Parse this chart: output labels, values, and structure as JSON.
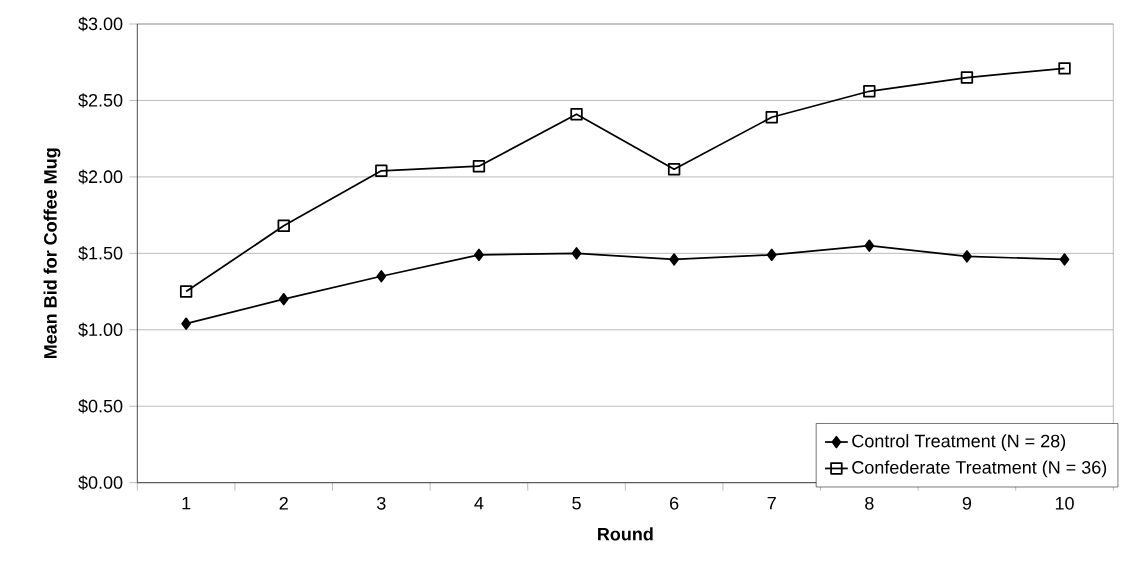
{
  "chart_data": {
    "type": "line",
    "xlabel": "Round",
    "ylabel": "Mean Bid for Coffee Mug",
    "categories": [
      "1",
      "2",
      "3",
      "4",
      "5",
      "6",
      "7",
      "8",
      "9",
      "10"
    ],
    "series": [
      {
        "name": "Control Treatment (N = 28)",
        "color": "#000000",
        "marker": "diamond",
        "values": [
          1.04,
          1.2,
          1.35,
          1.49,
          1.5,
          1.46,
          1.49,
          1.55,
          1.48,
          1.46
        ]
      },
      {
        "name": "Confederate Treatment (N = 36)",
        "color": "#000000",
        "marker": "square",
        "values": [
          1.25,
          1.68,
          2.04,
          2.07,
          2.41,
          2.05,
          2.39,
          2.56,
          2.65,
          2.71
        ]
      }
    ],
    "ylim": [
      0,
      3
    ],
    "yticks": [
      {
        "value": 0,
        "label": "$0.00"
      },
      {
        "value": 0.5,
        "label": "$0.50"
      },
      {
        "value": 1,
        "label": "$1.00"
      },
      {
        "value": 1.5,
        "label": "$1.50"
      },
      {
        "value": 2,
        "label": "$2.00"
      },
      {
        "value": 2.5,
        "label": "$2.50"
      },
      {
        "value": 3,
        "label": "$3.00"
      }
    ],
    "grid": "y",
    "legend": "bottom right",
    "line_style": "solid"
  }
}
